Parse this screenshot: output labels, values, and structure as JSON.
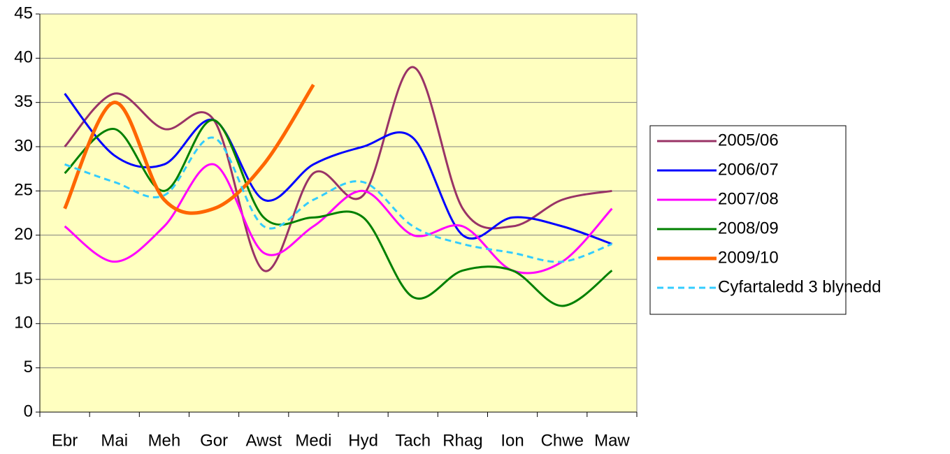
{
  "chart_data": {
    "type": "line",
    "categories": [
      "Ebr",
      "Mai",
      "Meh",
      "Gor",
      "Awst",
      "Medi",
      "Hyd",
      "Tach",
      "Rhag",
      "Ion",
      "Chwe",
      "Maw"
    ],
    "series": [
      {
        "name": "2005/06",
        "color": "#993366",
        "values": [
          30,
          36,
          32,
          33,
          16,
          27,
          24.5,
          39,
          23,
          21,
          24,
          25
        ]
      },
      {
        "name": "2006/07",
        "color": "#0000ff",
        "values": [
          36,
          29,
          28,
          33,
          24,
          28,
          30,
          31,
          20,
          22,
          21,
          19
        ]
      },
      {
        "name": "2007/08",
        "color": "#ff00ff",
        "values": [
          21,
          17,
          21,
          28,
          18,
          21,
          25,
          20,
          21,
          16,
          17,
          23
        ]
      },
      {
        "name": "2008/09",
        "color": "#008000",
        "values": [
          27,
          32,
          25,
          33,
          22,
          22,
          22,
          13,
          16,
          16,
          12,
          16
        ]
      },
      {
        "name": "2009/10",
        "color": "#ff6600",
        "thick": true,
        "values": [
          23,
          35,
          24,
          23,
          28,
          37,
          null,
          null,
          null,
          null,
          null,
          null
        ]
      },
      {
        "name": "Cyfartaledd 3 blynedd",
        "color": "#33ccff",
        "dashed": true,
        "values": [
          28,
          26,
          24.5,
          31,
          21,
          24,
          26,
          21,
          19,
          18,
          17,
          19
        ]
      }
    ],
    "ylim": [
      0,
      45
    ],
    "yticks": [
      0,
      5,
      10,
      15,
      20,
      25,
      30,
      35,
      40,
      45
    ],
    "grid": true,
    "legend": "right"
  }
}
